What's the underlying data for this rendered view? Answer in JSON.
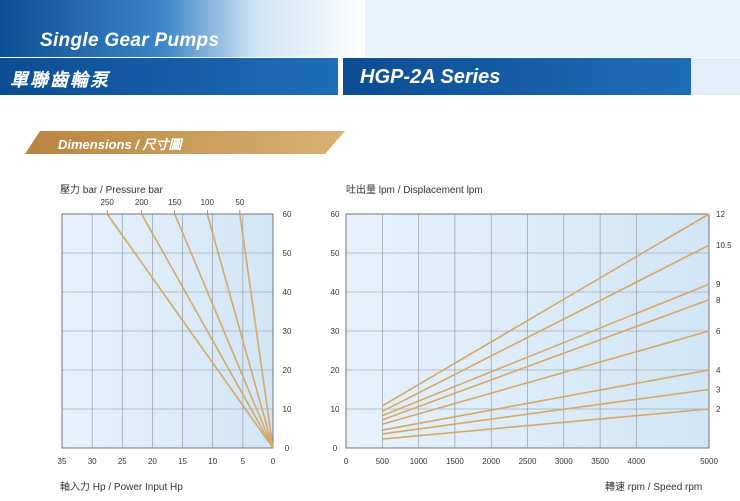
{
  "header": {
    "title_en": "Single Gear Pumps",
    "title_zh": "單聯齒輪泵",
    "series": "HGP-2A Series"
  },
  "section": {
    "label": "Dimensions / 尺寸圖"
  },
  "colors": {
    "header_blue": "#1a5fa8",
    "accent_tan": "#c79a55",
    "line": "#d4a86a",
    "plot_bg": "#dcecf8"
  },
  "chart_data": [
    {
      "type": "line",
      "title": "",
      "top_axis_label": "壓力 bar / Pressure bar",
      "xlabel": "軸入力 Hp / Power Input Hp",
      "ylabel": "",
      "x_ticks": [
        "35",
        "30",
        "25",
        "20",
        "15",
        "10",
        "5",
        "0"
      ],
      "y_ticks": [
        "0",
        "10",
        "20",
        "30",
        "40",
        "50",
        "60"
      ],
      "xlim": [
        35,
        0
      ],
      "ylim": [
        0,
        60
      ],
      "pressure_labels": [
        "250",
        "200",
        "150",
        "100",
        "50"
      ],
      "series": [
        {
          "name": "250",
          "x": [
            0,
            27.5
          ],
          "y": [
            0,
            60
          ]
        },
        {
          "name": "200",
          "x": [
            0,
            21.8
          ],
          "y": [
            0,
            60
          ]
        },
        {
          "name": "150",
          "x": [
            0,
            16.3
          ],
          "y": [
            0,
            60
          ]
        },
        {
          "name": "100",
          "x": [
            0,
            10.9
          ],
          "y": [
            0,
            60
          ]
        },
        {
          "name": "50",
          "x": [
            0,
            5.5
          ],
          "y": [
            0,
            60
          ]
        }
      ]
    },
    {
      "type": "line",
      "title": "",
      "ylabel": "吐出量 lpm / Displacement lpm",
      "xlabel": "轉速 rpm / Speed rpm",
      "x_ticks": [
        "0",
        "500",
        "1000",
        "1500",
        "2000",
        "2500",
        "3000",
        "3500",
        "4000",
        "5000"
      ],
      "y_ticks": [
        "0",
        "10",
        "20",
        "30",
        "40",
        "50",
        "60"
      ],
      "xlim": [
        0,
        5000
      ],
      "ylim": [
        0,
        60
      ],
      "series": [
        {
          "name": "12",
          "x": [
            500,
            5000
          ],
          "y": [
            10.8,
            60
          ]
        },
        {
          "name": "10.5",
          "x": [
            500,
            5000
          ],
          "y": [
            9.4,
            52
          ]
        },
        {
          "name": "9",
          "x": [
            500,
            5000
          ],
          "y": [
            8.3,
            42
          ]
        },
        {
          "name": "8",
          "x": [
            500,
            5000
          ],
          "y": [
            7.2,
            38
          ]
        },
        {
          "name": "6",
          "x": [
            500,
            5000
          ],
          "y": [
            6.1,
            30
          ]
        },
        {
          "name": "4",
          "x": [
            500,
            5000
          ],
          "y": [
            4.6,
            20
          ]
        },
        {
          "name": "3",
          "x": [
            500,
            5000
          ],
          "y": [
            3.6,
            15
          ]
        },
        {
          "name": "2",
          "x": [
            500,
            5000
          ],
          "y": [
            2.3,
            10
          ]
        }
      ]
    }
  ]
}
